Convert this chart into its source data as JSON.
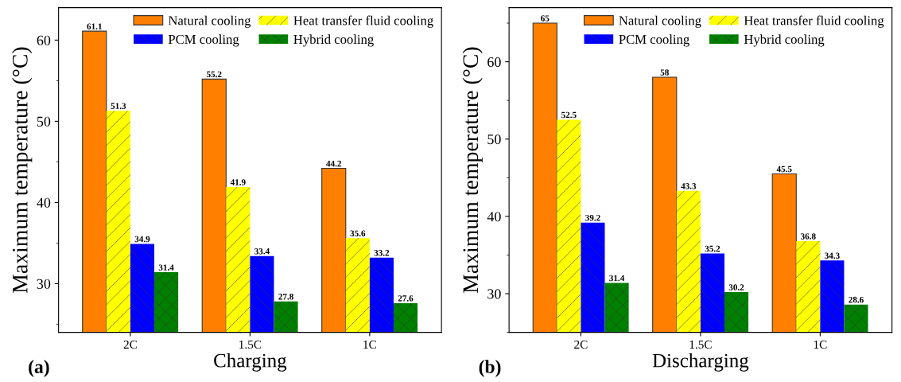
{
  "chart_data": [
    {
      "type": "bar",
      "xlabel": "Charging",
      "ylabel": "Maximum temperature (°C)",
      "categories": [
        "2C",
        "1.5C",
        "1C"
      ],
      "ylim": [
        24,
        64
      ],
      "yticks": [
        30,
        40,
        50,
        60
      ],
      "data_labels": true,
      "legend": "top right",
      "grid": false,
      "annotations": [
        "(a)"
      ],
      "series": [
        {
          "name": "Natural cooling",
          "color": "#ff8000",
          "values": [
            61.1,
            55.2,
            44.2
          ]
        },
        {
          "name": "Heat transfer fluid cooling",
          "color": "#ffff00",
          "values": [
            51.3,
            41.9,
            35.6
          ]
        },
        {
          "name": "PCM cooling",
          "color": "#0000ff",
          "values": [
            34.9,
            33.4,
            33.2
          ]
        },
        {
          "name": "Hybrid cooling",
          "color": "#008000",
          "values": [
            31.4,
            27.8,
            27.6
          ]
        }
      ]
    },
    {
      "type": "bar",
      "xlabel": "Discharging",
      "ylabel": "Maximum temperature (°C)",
      "categories": [
        "2C",
        "1.5C",
        "1C"
      ],
      "ylim": [
        25,
        67
      ],
      "yticks": [
        30,
        40,
        50,
        60
      ],
      "data_labels": true,
      "legend": "top right",
      "grid": false,
      "annotations": [
        "(b)"
      ],
      "series": [
        {
          "name": "Natural cooling",
          "color": "#ff8000",
          "values": [
            65,
            58,
            45.5
          ]
        },
        {
          "name": "Heat transfer fluid cooling",
          "color": "#ffff00",
          "values": [
            52.5,
            43.3,
            36.8
          ]
        },
        {
          "name": "PCM cooling",
          "color": "#0000ff",
          "values": [
            39.2,
            35.2,
            34.3
          ]
        },
        {
          "name": "Hybrid cooling",
          "color": "#008000",
          "values": [
            31.4,
            30.2,
            28.6
          ]
        }
      ]
    }
  ]
}
